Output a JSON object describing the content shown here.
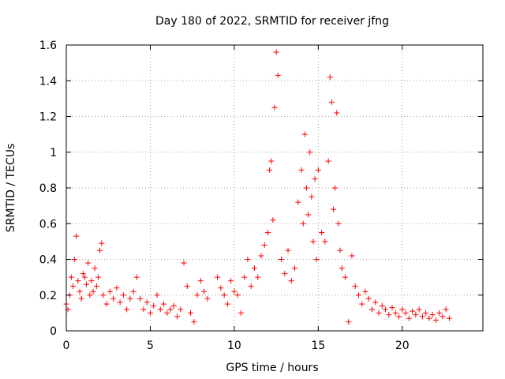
{
  "chart_data": {
    "type": "scatter",
    "title": "Day 180 of 2022, SRMTID for receiver jfng",
    "xlabel": "GPS time / hours",
    "ylabel": "SRMTID / TECUs",
    "xlim": [
      0,
      24.8
    ],
    "ylim": [
      0,
      1.6
    ],
    "grid": true,
    "marker": "+",
    "x_ticks": [
      0,
      5,
      10,
      15,
      20
    ],
    "y_ticks": [
      0,
      0.2,
      0.4,
      0.6,
      0.8,
      1.0,
      1.2,
      1.4,
      1.6
    ],
    "x_tick_labels": [
      "0",
      "5",
      "10",
      "15",
      "20"
    ],
    "y_tick_labels": [
      "0",
      "0.2",
      "0.4",
      "0.6",
      "0.8",
      "1",
      "1.2",
      "1.4",
      "1.6"
    ],
    "series": [
      {
        "name": "SRMTID",
        "color": "#ff0000",
        "x": [
          0.0,
          0.1,
          0.2,
          0.3,
          0.4,
          0.5,
          0.6,
          0.7,
          0.8,
          0.9,
          1.0,
          1.1,
          1.2,
          1.3,
          1.4,
          1.5,
          1.6,
          1.7,
          1.8,
          1.9,
          2.0,
          2.1,
          2.2,
          2.4,
          2.6,
          2.8,
          3.0,
          3.2,
          3.4,
          3.6,
          3.8,
          4.0,
          4.2,
          4.4,
          4.6,
          4.8,
          5.0,
          5.2,
          5.4,
          5.6,
          5.8,
          6.0,
          6.2,
          6.4,
          6.6,
          6.8,
          7.0,
          7.2,
          7.4,
          7.6,
          7.8,
          8.0,
          8.2,
          8.4,
          9.0,
          9.2,
          9.4,
          9.6,
          9.8,
          10.0,
          10.2,
          10.4,
          10.6,
          10.8,
          11.0,
          11.2,
          11.4,
          11.6,
          11.8,
          12.0,
          12.1,
          12.2,
          12.3,
          12.4,
          12.5,
          12.6,
          12.8,
          13.0,
          13.2,
          13.4,
          13.6,
          13.8,
          14.0,
          14.1,
          14.2,
          14.3,
          14.4,
          14.5,
          14.6,
          14.7,
          14.8,
          14.9,
          15.0,
          15.2,
          15.4,
          15.6,
          15.7,
          15.8,
          15.9,
          16.0,
          16.1,
          16.2,
          16.3,
          16.4,
          16.6,
          16.8,
          17.0,
          17.2,
          17.4,
          17.6,
          17.8,
          18.0,
          18.2,
          18.4,
          18.6,
          18.8,
          19.0,
          19.2,
          19.4,
          19.6,
          19.8,
          20.0,
          20.2,
          20.4,
          20.6,
          20.8,
          21.0,
          21.2,
          21.4,
          21.6,
          21.8,
          22.0,
          22.2,
          22.4,
          22.6,
          22.8
        ],
        "y": [
          0.15,
          0.12,
          0.2,
          0.3,
          0.25,
          0.4,
          0.53,
          0.28,
          0.22,
          0.18,
          0.32,
          0.3,
          0.26,
          0.38,
          0.2,
          0.28,
          0.22,
          0.35,
          0.25,
          0.3,
          0.45,
          0.49,
          0.2,
          0.15,
          0.22,
          0.18,
          0.24,
          0.16,
          0.2,
          0.12,
          0.18,
          0.22,
          0.3,
          0.18,
          0.12,
          0.16,
          0.1,
          0.14,
          0.2,
          0.12,
          0.15,
          0.1,
          0.12,
          0.14,
          0.08,
          0.12,
          0.38,
          0.25,
          0.1,
          0.05,
          0.2,
          0.28,
          0.22,
          0.18,
          0.3,
          0.24,
          0.2,
          0.15,
          0.28,
          0.22,
          0.2,
          0.1,
          0.3,
          0.4,
          0.25,
          0.35,
          0.3,
          0.42,
          0.48,
          0.55,
          0.9,
          0.95,
          0.62,
          1.25,
          1.56,
          1.43,
          0.4,
          0.32,
          0.45,
          0.28,
          0.35,
          0.72,
          0.9,
          0.6,
          1.1,
          0.8,
          0.65,
          1.0,
          0.75,
          0.5,
          0.85,
          0.4,
          0.9,
          0.55,
          0.5,
          0.95,
          1.42,
          1.28,
          0.68,
          0.8,
          1.22,
          0.6,
          0.45,
          0.35,
          0.3,
          0.05,
          0.42,
          0.25,
          0.2,
          0.15,
          0.22,
          0.18,
          0.12,
          0.16,
          0.1,
          0.14,
          0.12,
          0.09,
          0.13,
          0.1,
          0.08,
          0.12,
          0.1,
          0.07,
          0.11,
          0.09,
          0.12,
          0.08,
          0.1,
          0.07,
          0.09,
          0.06,
          0.1,
          0.08,
          0.12,
          0.07
        ]
      }
    ]
  }
}
